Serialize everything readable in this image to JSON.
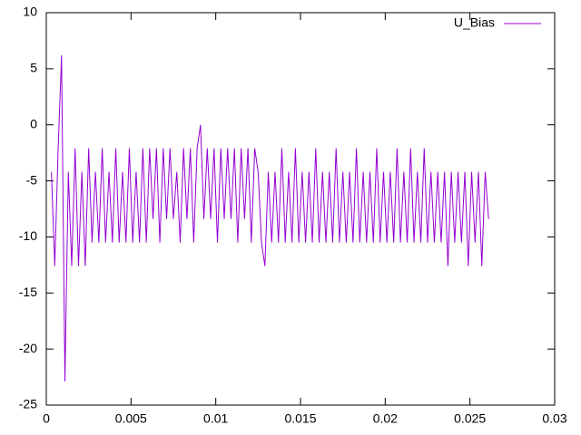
{
  "chart_data": {
    "type": "line",
    "xlim": [
      0,
      0.03
    ],
    "xticks": [
      0,
      0.005,
      0.01,
      0.015,
      0.02,
      0.025,
      0.03
    ],
    "ylim": [
      -25,
      10
    ],
    "yticks": [
      -25,
      -20,
      -15,
      -10,
      -5,
      0,
      5,
      10
    ],
    "legend": "top right",
    "series": [
      {
        "name": "U_Bias",
        "color": "#9400d3",
        "x": [
          0.0003,
          0.0005,
          0.0007,
          0.0009,
          0.0011,
          0.0013,
          0.0015,
          0.0017,
          0.0019,
          0.0021,
          0.0023,
          0.0025,
          0.0027,
          0.0029,
          0.0031,
          0.0033,
          0.0035,
          0.0037,
          0.0039,
          0.0041,
          0.0043,
          0.0045,
          0.0047,
          0.0049,
          0.0051,
          0.0053,
          0.0055,
          0.0057,
          0.0059,
          0.0061,
          0.0063,
          0.0065,
          0.0067,
          0.0069,
          0.0071,
          0.0073,
          0.0075,
          0.0077,
          0.0079,
          0.0081,
          0.0083,
          0.0085,
          0.0087,
          0.0089,
          0.0091,
          0.0093,
          0.0095,
          0.0097,
          0.0099,
          0.0101,
          0.0103,
          0.0105,
          0.0107,
          0.0109,
          0.0111,
          0.0113,
          0.0115,
          0.0117,
          0.0119,
          0.0121,
          0.0123,
          0.0125,
          0.0127,
          0.0129,
          0.0131,
          0.0133,
          0.0135,
          0.0137,
          0.0139,
          0.0141,
          0.0143,
          0.0145,
          0.0147,
          0.0149,
          0.0151,
          0.0153,
          0.0155,
          0.0157,
          0.0159,
          0.0161,
          0.0163,
          0.0165,
          0.0167,
          0.0169,
          0.0171,
          0.0173,
          0.0175,
          0.0177,
          0.0179,
          0.0181,
          0.0183,
          0.0185,
          0.0187,
          0.0189,
          0.0191,
          0.0193,
          0.0195,
          0.0197,
          0.0199,
          0.0201,
          0.0203,
          0.0205,
          0.0207,
          0.0209,
          0.0211,
          0.0213,
          0.0215,
          0.0217,
          0.0219,
          0.0221,
          0.0223,
          0.0225,
          0.0227,
          0.0229,
          0.0231,
          0.0233,
          0.0235,
          0.0237,
          0.0239,
          0.0241,
          0.0243,
          0.0245,
          0.0247,
          0.0249,
          0.0251,
          0.0253,
          0.0255,
          0.0257,
          0.0259,
          0.0261
        ],
        "values": [
          -4.2,
          -12.6,
          -2.1,
          6.2,
          -22.9,
          -4.2,
          -12.6,
          -2.1,
          -12.6,
          -4.2,
          -12.6,
          -2.1,
          -10.5,
          -4.2,
          -10.5,
          -2.1,
          -10.5,
          -4.2,
          -10.5,
          -2.1,
          -10.5,
          -4.2,
          -10.5,
          -2.1,
          -10.5,
          -4.2,
          -10.5,
          -2.1,
          -10.5,
          -2.1,
          -8.4,
          -2.1,
          -10.5,
          -2.1,
          -8.4,
          -2.1,
          -8.4,
          -4.2,
          -10.5,
          -2.1,
          -8.4,
          -2.1,
          -10.5,
          -2.1,
          0,
          -8.4,
          -2.1,
          -8.4,
          -2.1,
          -10.5,
          -2.1,
          -8.4,
          -2.1,
          -8.4,
          -2.1,
          -10.5,
          -2.1,
          -8.4,
          -2.1,
          -10.5,
          -2.1,
          -4.2,
          -10.5,
          -12.6,
          -4.2,
          -10.5,
          -4.2,
          -10.5,
          -2.1,
          -10.5,
          -4.2,
          -10.5,
          -2.1,
          -10.5,
          -4.2,
          -10.5,
          -4.2,
          -10.5,
          -2.1,
          -10.5,
          -4.2,
          -10.5,
          -4.2,
          -10.5,
          -2.1,
          -10.5,
          -4.2,
          -10.5,
          -4.2,
          -10.5,
          -2.1,
          -10.5,
          -4.2,
          -10.5,
          -4.2,
          -10.5,
          -2.1,
          -10.5,
          -4.2,
          -10.5,
          -4.2,
          -10.5,
          -2.1,
          -10.5,
          -4.2,
          -10.5,
          -2.1,
          -10.5,
          -4.2,
          -10.5,
          -2.1,
          -10.5,
          -4.2,
          -10.5,
          -4.2,
          -10.5,
          -4.2,
          -12.6,
          -4.2,
          -10.5,
          -4.2,
          -10.5,
          -4.2,
          -12.6,
          -4.2,
          -10.5,
          -4.2,
          -12.6,
          -4.2,
          -8.4
        ]
      }
    ]
  }
}
